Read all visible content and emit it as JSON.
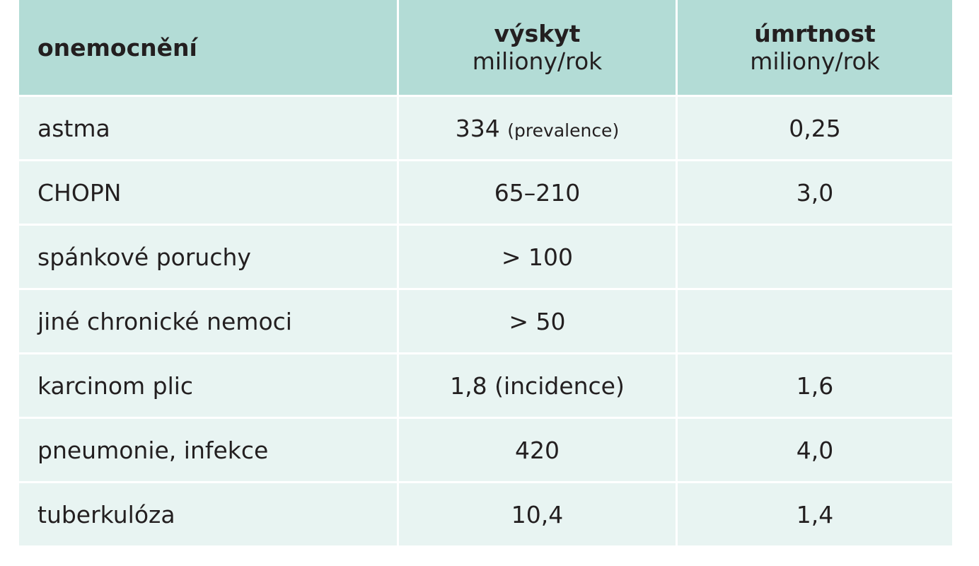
{
  "table": {
    "header": [
      {
        "title": "onemocnění"
      },
      {
        "title": "výskyt",
        "unit": "miliony/rok"
      },
      {
        "title": "úmrtnost",
        "unit": "miliony/rok"
      }
    ],
    "rows": [
      [
        "astma",
        {
          "text": "334",
          "note": "(prevalence)"
        },
        "0,25"
      ],
      [
        "CHOPN",
        "65–210",
        "3,0"
      ],
      [
        "spánkové poruchy",
        "> 100",
        null
      ],
      [
        "jiné chronické nemoci",
        "> 50",
        null
      ],
      [
        "karcinom plic",
        "1,8 (incidence)",
        "1,6"
      ],
      [
        "pneumonie, infekce",
        "420",
        "4,0"
      ],
      [
        "tuberkulóza",
        "10,4",
        "1,4"
      ]
    ]
  }
}
